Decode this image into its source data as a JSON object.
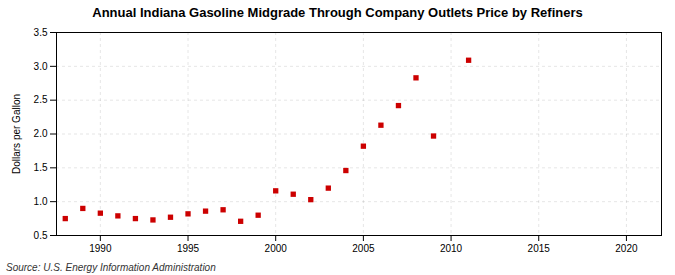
{
  "chart_data": {
    "type": "scatter",
    "title": "Annual Indiana Gasoline Midgrade Through Company Outlets Price by Refiners",
    "ylabel": "Dollars per Gallon",
    "source": "Source: U.S. Energy Information Administration",
    "x": [
      1988,
      1989,
      1990,
      1991,
      1992,
      1993,
      1994,
      1995,
      1996,
      1997,
      1998,
      1999,
      2000,
      2001,
      2002,
      2003,
      2004,
      2005,
      2006,
      2007,
      2008,
      2009,
      2011
    ],
    "values": [
      0.75,
      0.9,
      0.83,
      0.79,
      0.75,
      0.73,
      0.77,
      0.82,
      0.86,
      0.88,
      0.71,
      0.8,
      1.16,
      1.11,
      1.03,
      1.2,
      1.46,
      1.82,
      2.13,
      2.42,
      2.83,
      1.97,
      3.09
    ],
    "color": "#cc0000",
    "marker": "square",
    "xlim": [
      1987.5,
      2022
    ],
    "ylim": [
      0.5,
      3.5
    ],
    "xticks": [
      1990,
      1995,
      2000,
      2005,
      2010,
      2015,
      2020
    ],
    "yticks": [
      0.5,
      {
        "value": 1.0,
        "label": "1.0"
      },
      1.5,
      {
        "value": 2.0,
        "label": "2.0"
      },
      2.5,
      {
        "value": 3.0,
        "label": "3.0"
      },
      3.5
    ],
    "grid": true
  }
}
